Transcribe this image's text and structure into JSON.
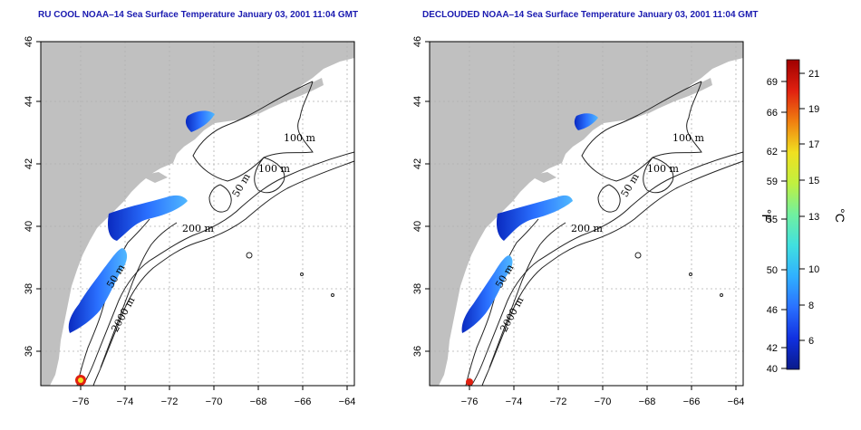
{
  "left_panel": {
    "title": "RU COOL NOAA–14 Sea Surface Temperature January 03, 2001 11:04 GMT",
    "contour_labels": [
      "100 m",
      "100 m",
      "50 m",
      "200 m",
      "50 m",
      "2000 m"
    ]
  },
  "right_panel": {
    "title": "DECLOUDED NOAA–14 Sea Surface Temperature January 03, 2001 11:04 GMT",
    "contour_labels": [
      "100 m",
      "100 m",
      "50 m",
      "200 m",
      "50 m",
      "2000 m"
    ]
  },
  "axes": {
    "lon_ticks": [
      "−76",
      "−74",
      "−72",
      "−70",
      "−68",
      "−66",
      "−64"
    ],
    "lat_ticks": [
      "46",
      "44",
      "42",
      "40",
      "38",
      "36"
    ]
  },
  "colorbar": {
    "fahrenheit_unit": "°F",
    "celsius_unit": "°C",
    "fahrenheit_ticks": [
      "69",
      "66",
      "62",
      "59",
      "55",
      "50",
      "46",
      "42",
      "40"
    ],
    "celsius_ticks": [
      "21",
      "19",
      "17",
      "15",
      "13",
      "10",
      "8",
      "6"
    ],
    "colors": [
      "#0a1a8a",
      "#1030e0",
      "#2a70ff",
      "#30b0ff",
      "#40e0e0",
      "#70f0a0",
      "#c0f040",
      "#f0e020",
      "#f08010",
      "#e02010",
      "#a00000"
    ]
  },
  "colors": {
    "land": "#c0c0c0",
    "ocean": "#ffffff",
    "title": "#1a1ab0",
    "sst_cold": "#1a40e0",
    "sst_mid": "#3aa0ff"
  }
}
